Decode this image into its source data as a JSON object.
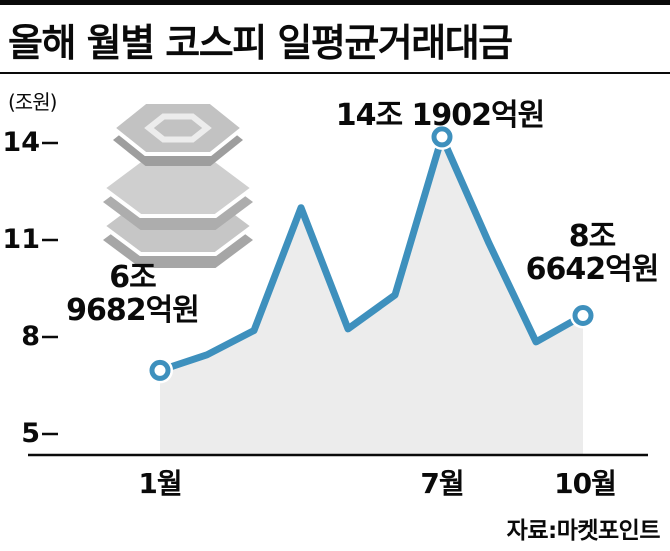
{
  "header": {
    "title": "올해 월별 코스피 일평균거래대금"
  },
  "chart_data": {
    "type": "area",
    "title": "올해 월별 코스피 일평균거래대금",
    "unit_label": "(조원)",
    "x": [
      1,
      2,
      3,
      4,
      5,
      6,
      7,
      8,
      9,
      10
    ],
    "x_unit": "월",
    "values": [
      6.9682,
      7.45,
      8.2,
      12.0,
      8.25,
      9.3,
      14.1902,
      10.9,
      7.85,
      8.6642
    ],
    "y_ticks": [
      5,
      8,
      11,
      14
    ],
    "ylim": [
      5,
      15
    ],
    "x_tick_labels": [
      {
        "month": 1,
        "label": "1월"
      },
      {
        "month": 7,
        "label": "7월"
      },
      {
        "month": 10,
        "label": "10월"
      }
    ],
    "marker_months": [
      1,
      7,
      10
    ],
    "annotations": [
      {
        "month": 1,
        "value_label": "6조 9682억원"
      },
      {
        "month": 7,
        "value_label": "14조 1902억원"
      },
      {
        "month": 10,
        "value_label": "8조 6642억원"
      }
    ],
    "line_color": "#3e90bd",
    "fill_color": "#ececec",
    "axis_color": "#0a0a0a",
    "grid": false,
    "legend": false
  },
  "labels": {
    "ann_jan_line1": "6조",
    "ann_jan_line2": "9682억원",
    "ann_jul": "14조 1902억원",
    "ann_oct_line1": "8조",
    "ann_oct_line2": "6642억원"
  },
  "icons": {
    "decorative": "coin-stack-icon"
  },
  "footer": {
    "source": "자료:마켓포인트"
  }
}
